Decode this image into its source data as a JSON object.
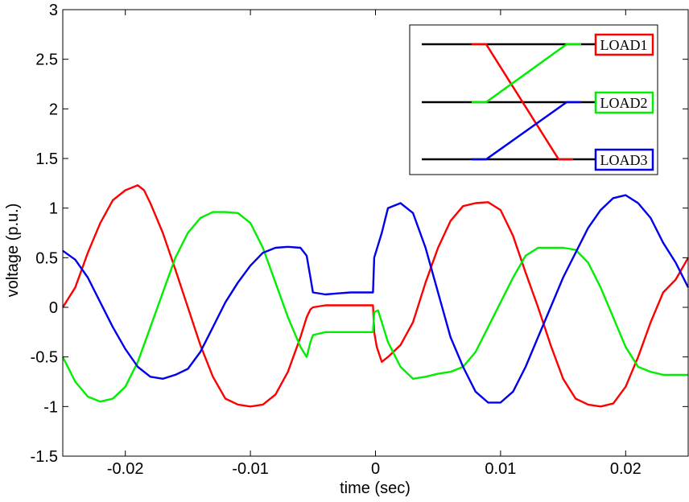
{
  "chart_data": {
    "type": "line",
    "xlabel": "time (sec)",
    "ylabel": "voltage (p.u.)",
    "xlim": [
      -0.025,
      0.025
    ],
    "ylim": [
      -1.5,
      3
    ],
    "xticks": [
      -0.02,
      -0.01,
      0,
      0.01,
      0.02
    ],
    "xtick_labels": [
      "-0.02",
      "-0.01",
      "0",
      "0.01",
      "0.02"
    ],
    "yticks": [
      -1.5,
      -1,
      -0.5,
      0,
      0.5,
      1,
      1.5,
      2,
      2.5,
      3
    ],
    "ytick_labels": [
      "-1.5",
      "-1",
      "-0.5",
      "0",
      "0.5",
      "1",
      "1.5",
      "2",
      "2.5",
      "3"
    ],
    "grid": false,
    "colors": {
      "red": "#ff0000",
      "green": "#00ee00",
      "blue": "#0000ee",
      "black": "#000000"
    },
    "series": [
      {
        "color": "#ff0000",
        "x": [
          -0.025,
          -0.024,
          -0.023,
          -0.022,
          -0.021,
          -0.02,
          -0.019,
          -0.0185,
          -0.018,
          -0.017,
          -0.016,
          -0.015,
          -0.014,
          -0.013,
          -0.012,
          -0.011,
          -0.01,
          -0.009,
          -0.008,
          -0.007,
          -0.006,
          -0.0055,
          -0.0052,
          -0.005,
          -0.004,
          -0.003,
          -0.002,
          -0.001,
          -0.0002,
          -0.0001,
          0.0001,
          0.0005,
          0.001,
          0.002,
          0.003,
          0.004,
          0.005,
          0.006,
          0.007,
          0.008,
          0.009,
          0.01,
          0.011,
          0.012,
          0.013,
          0.014,
          0.015,
          0.016,
          0.017,
          0.018,
          0.019,
          0.02,
          0.021,
          0.022,
          0.023,
          0.024,
          0.025
        ],
        "y": [
          0.0,
          0.2,
          0.55,
          0.85,
          1.08,
          1.18,
          1.23,
          1.18,
          1.05,
          0.75,
          0.38,
          0.0,
          -0.38,
          -0.7,
          -0.92,
          -0.98,
          -1.0,
          -0.98,
          -0.88,
          -0.65,
          -0.3,
          -0.1,
          -0.02,
          0.0,
          0.02,
          0.02,
          0.02,
          0.02,
          0.02,
          -0.25,
          -0.4,
          -0.55,
          -0.5,
          -0.38,
          -0.15,
          0.25,
          0.6,
          0.87,
          1.02,
          1.05,
          1.06,
          0.98,
          0.72,
          0.35,
          0.0,
          -0.38,
          -0.72,
          -0.92,
          -0.98,
          -1.0,
          -0.97,
          -0.8,
          -0.5,
          -0.15,
          0.15,
          0.28,
          0.5
        ]
      },
      {
        "color": "#00ee00",
        "x": [
          -0.025,
          -0.024,
          -0.023,
          -0.022,
          -0.021,
          -0.02,
          -0.019,
          -0.018,
          -0.017,
          -0.016,
          -0.015,
          -0.014,
          -0.013,
          -0.012,
          -0.011,
          -0.01,
          -0.009,
          -0.008,
          -0.007,
          -0.006,
          -0.0055,
          -0.0052,
          -0.005,
          -0.004,
          -0.003,
          -0.002,
          -0.001,
          -0.0002,
          -0.0001,
          0.0002,
          0.0005,
          0.001,
          0.002,
          0.003,
          0.004,
          0.005,
          0.006,
          0.007,
          0.008,
          0.009,
          0.01,
          0.011,
          0.012,
          0.013,
          0.014,
          0.015,
          0.016,
          0.017,
          0.018,
          0.019,
          0.02,
          0.021,
          0.022,
          0.023,
          0.024,
          0.025
        ],
        "y": [
          -0.5,
          -0.75,
          -0.9,
          -0.95,
          -0.92,
          -0.8,
          -0.55,
          -0.2,
          0.15,
          0.5,
          0.75,
          0.9,
          0.96,
          0.96,
          0.95,
          0.85,
          0.6,
          0.25,
          -0.1,
          -0.4,
          -0.5,
          -0.35,
          -0.28,
          -0.25,
          -0.25,
          -0.25,
          -0.25,
          -0.25,
          -0.05,
          -0.03,
          -0.15,
          -0.35,
          -0.6,
          -0.72,
          -0.7,
          -0.67,
          -0.65,
          -0.6,
          -0.45,
          -0.2,
          0.05,
          0.3,
          0.52,
          0.6,
          0.6,
          0.6,
          0.58,
          0.45,
          0.2,
          -0.1,
          -0.4,
          -0.6,
          -0.65,
          -0.68,
          -0.68,
          -0.68
        ]
      },
      {
        "color": "#0000ee",
        "x": [
          -0.025,
          -0.024,
          -0.023,
          -0.022,
          -0.021,
          -0.02,
          -0.019,
          -0.018,
          -0.017,
          -0.016,
          -0.015,
          -0.014,
          -0.013,
          -0.012,
          -0.011,
          -0.01,
          -0.009,
          -0.008,
          -0.007,
          -0.006,
          -0.0055,
          -0.0052,
          -0.005,
          -0.004,
          -0.003,
          -0.002,
          -0.001,
          -0.0002,
          -0.0001,
          0.0005,
          0.001,
          0.002,
          0.003,
          0.004,
          0.005,
          0.006,
          0.007,
          0.008,
          0.009,
          0.01,
          0.011,
          0.012,
          0.013,
          0.014,
          0.015,
          0.016,
          0.017,
          0.018,
          0.019,
          0.02,
          0.021,
          0.022,
          0.023,
          0.024,
          0.025
        ],
        "y": [
          0.57,
          0.48,
          0.3,
          0.05,
          -0.2,
          -0.42,
          -0.6,
          -0.7,
          -0.72,
          -0.68,
          -0.62,
          -0.45,
          -0.2,
          0.05,
          0.25,
          0.42,
          0.55,
          0.6,
          0.61,
          0.6,
          0.52,
          0.3,
          0.15,
          0.13,
          0.14,
          0.15,
          0.15,
          0.15,
          0.5,
          0.75,
          1.0,
          1.05,
          0.95,
          0.6,
          0.15,
          -0.3,
          -0.6,
          -0.85,
          -0.96,
          -0.96,
          -0.85,
          -0.6,
          -0.3,
          0.0,
          0.3,
          0.55,
          0.8,
          0.98,
          1.1,
          1.13,
          1.05,
          0.9,
          0.65,
          0.45,
          0.2
        ]
      }
    ],
    "inset_legend": {
      "labels": [
        "LOAD1",
        "LOAD2",
        "LOAD3"
      ],
      "label_colors": [
        "#ff0000",
        "#00ee00",
        "#0000ee"
      ],
      "bus_color": "#000000"
    }
  }
}
